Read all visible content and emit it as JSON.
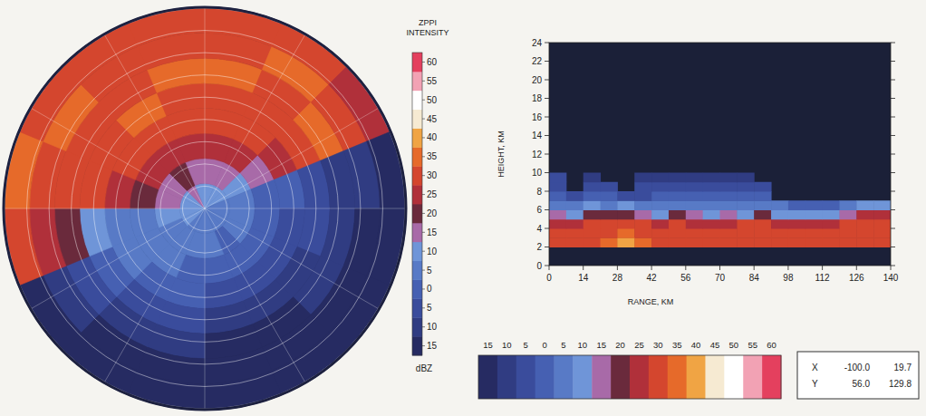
{
  "chart_data": [
    {
      "type": "ppi",
      "title": "ZPPI INTENSITY",
      "azimuths": [
        0,
        22.5,
        45,
        67.5,
        90,
        112.5,
        135,
        157.5,
        180,
        202.5,
        225,
        247.5,
        270,
        292.5,
        315,
        337.5
      ],
      "cells": [
        [
          10,
          15,
          25,
          30,
          30,
          35,
          30,
          30
        ],
        [
          10,
          15,
          25,
          30,
          30,
          30,
          35,
          30
        ],
        [
          10,
          10,
          15,
          25,
          30,
          35,
          30,
          25
        ],
        [
          5,
          5,
          0,
          0,
          -5,
          -10,
          -10,
          -15
        ],
        [
          5,
          5,
          0,
          -5,
          -5,
          -10,
          -15,
          -15
        ],
        [
          5,
          5,
          0,
          -5,
          -10,
          -10,
          -15,
          -15
        ],
        [
          5,
          0,
          0,
          -5,
          -10,
          -15,
          -15,
          -15
        ],
        [
          5,
          5,
          0,
          -5,
          -10,
          -15,
          -15,
          -15
        ],
        [
          5,
          5,
          0,
          0,
          -5,
          -10,
          -15,
          -15
        ],
        [
          5,
          5,
          5,
          0,
          -5,
          -10,
          -15,
          -15
        ],
        [
          10,
          5,
          5,
          5,
          0,
          -5,
          -10,
          -15
        ],
        [
          10,
          10,
          5,
          5,
          10,
          20,
          25,
          30
        ],
        [
          10,
          15,
          20,
          25,
          30,
          30,
          30,
          35
        ],
        [
          10,
          15,
          25,
          30,
          30,
          30,
          35,
          30
        ],
        [
          15,
          20,
          25,
          30,
          35,
          30,
          30,
          30
        ],
        [
          10,
          15,
          25,
          30,
          30,
          35,
          30,
          30
        ]
      ],
      "colorbar": {
        "label": "dBZ",
        "levels": [
          -15,
          -10,
          -5,
          0,
          5,
          10,
          15,
          20,
          25,
          30,
          35,
          40,
          45,
          50,
          55,
          60
        ],
        "colors": [
          "#262b62",
          "#303c82",
          "#3a4c9c",
          "#4660b2",
          "#587ac6",
          "#6f95d8",
          "#a86aa8",
          "#6a2a3c",
          "#b0303a",
          "#d4462e",
          "#e66a2a",
          "#f0a444",
          "#f6ead2",
          "#ffffff",
          "#f2a2b4",
          "#e4405e"
        ],
        "ticks": [
          {
            "value": -15,
            "label": "15"
          },
          {
            "value": -10,
            "label": "10"
          },
          {
            "value": -5,
            "label": "5"
          },
          0,
          5,
          10,
          15,
          20,
          25,
          30,
          35,
          40,
          45,
          50,
          55,
          60
        ]
      }
    },
    {
      "type": "rhi",
      "xlabel": "RANGE, KM",
      "ylabel": "HEIGHT, KM",
      "xlim": [
        0,
        140
      ],
      "ylim": [
        0,
        24
      ],
      "xticks": [
        0,
        14,
        28,
        42,
        56,
        70,
        84,
        98,
        112,
        126,
        140
      ],
      "yticks": [
        0,
        2,
        4,
        6,
        8,
        10,
        12,
        14,
        16,
        18,
        20,
        22,
        24
      ],
      "x_edges": [
        0,
        7,
        14,
        21,
        28,
        35,
        42,
        49,
        56,
        63,
        70,
        77,
        84,
        91,
        98,
        105,
        112,
        119,
        126,
        133,
        140
      ],
      "y_edges": [
        0,
        1,
        2,
        3,
        4,
        5,
        6,
        7,
        8,
        9,
        10
      ],
      "cells": [
        [
          null,
          null,
          null,
          null,
          null,
          null,
          null,
          null,
          null,
          null,
          null,
          null,
          null,
          null,
          null,
          null,
          null,
          null,
          null,
          null
        ],
        [
          null,
          null,
          null,
          null,
          null,
          null,
          null,
          null,
          null,
          null,
          null,
          null,
          null,
          null,
          null,
          null,
          null,
          null,
          null,
          null
        ],
        [
          30,
          30,
          30,
          35,
          40,
          35,
          30,
          30,
          30,
          30,
          30,
          30,
          30,
          30,
          30,
          30,
          30,
          30,
          30,
          30
        ],
        [
          30,
          30,
          30,
          30,
          35,
          30,
          30,
          30,
          30,
          30,
          30,
          30,
          30,
          30,
          30,
          30,
          30,
          30,
          30,
          30
        ],
        [
          25,
          25,
          30,
          30,
          30,
          30,
          25,
          30,
          25,
          25,
          25,
          30,
          30,
          25,
          25,
          25,
          25,
          30,
          30,
          30
        ],
        [
          15,
          10,
          20,
          20,
          20,
          15,
          10,
          20,
          15,
          10,
          15,
          10,
          20,
          10,
          10,
          10,
          10,
          15,
          25,
          25
        ],
        [
          5,
          5,
          10,
          5,
          10,
          5,
          5,
          5,
          5,
          5,
          5,
          5,
          5,
          5,
          0,
          0,
          0,
          5,
          10,
          10
        ],
        [
          0,
          -5,
          0,
          0,
          -5,
          -5,
          0,
          0,
          0,
          0,
          0,
          0,
          0,
          null,
          null,
          null,
          null,
          null,
          null,
          null
        ],
        [
          -5,
          null,
          -5,
          -5,
          null,
          -5,
          -5,
          -5,
          -5,
          -5,
          -5,
          -5,
          -5,
          null,
          null,
          null,
          null,
          null,
          null,
          null
        ],
        [
          -5,
          null,
          -10,
          null,
          null,
          -10,
          -10,
          -10,
          -10,
          -10,
          -10,
          -10,
          null,
          null,
          null,
          null,
          null,
          null,
          null,
          null
        ]
      ],
      "colorbar": {
        "levels": [
          -15,
          -10,
          -5,
          0,
          5,
          10,
          15,
          20,
          25,
          30,
          35,
          40,
          45,
          50,
          55,
          60
        ],
        "colors": [
          "#262b62",
          "#303c82",
          "#3a4c9c",
          "#4660b2",
          "#587ac6",
          "#6f95d8",
          "#a86aa8",
          "#6a2a3c",
          "#b0303a",
          "#d4462e",
          "#e66a2a",
          "#f0a444",
          "#f6ead2",
          "#ffffff",
          "#f2a2b4",
          "#e4405e"
        ],
        "ticks": [
          {
            "value": -15,
            "label": "15"
          },
          {
            "value": -10,
            "label": "10"
          },
          {
            "value": -5,
            "label": "5"
          },
          0,
          5,
          10,
          15,
          20,
          25,
          30,
          35,
          40,
          45,
          50,
          55,
          60
        ]
      },
      "cursor": [
        [
          "X",
          "-100.0",
          "19.7"
        ],
        [
          "Y",
          "56.0",
          "129.8"
        ]
      ]
    }
  ]
}
